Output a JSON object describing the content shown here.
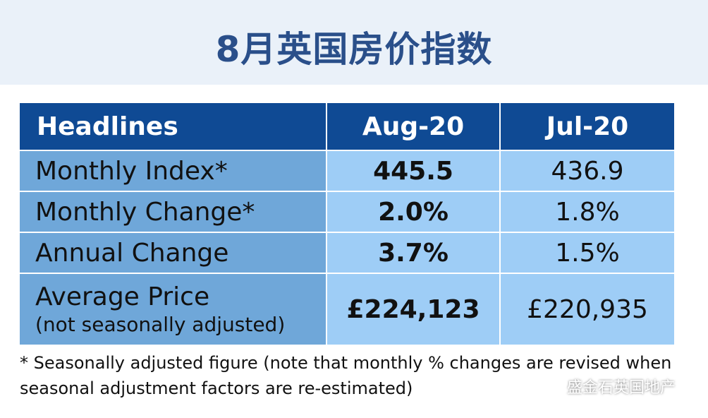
{
  "title": "8月英国房价指数",
  "table": {
    "headers": [
      "Headlines",
      "Aug-20",
      "Jul-20"
    ],
    "rows": [
      {
        "label": "Monthly Index*",
        "sub": "",
        "aug": "445.5",
        "jul": "436.9"
      },
      {
        "label": "Monthly Change*",
        "sub": "",
        "aug": "2.0%",
        "jul": "1.8%"
      },
      {
        "label": "Annual Change",
        "sub": "",
        "aug": "3.7%",
        "jul": "1.5%"
      },
      {
        "label": "Average Price",
        "sub": "(not seasonally adjusted)",
        "aug": "£224,123",
        "jul": "£220,935"
      }
    ]
  },
  "footnote": {
    "line1": "* Seasonally adjusted figure (note that monthly % changes are revised when",
    "line2": "seasonal adjustment factors are re-estimated)"
  },
  "watermark": {
    "text": "盛金石英国地产",
    "icon": "wechat-icon"
  }
}
